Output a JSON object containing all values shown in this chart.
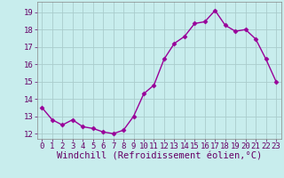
{
  "x": [
    0,
    1,
    2,
    3,
    4,
    5,
    6,
    7,
    8,
    9,
    10,
    11,
    12,
    13,
    14,
    15,
    16,
    17,
    18,
    19,
    20,
    21,
    22,
    23
  ],
  "y": [
    13.5,
    12.8,
    12.5,
    12.8,
    12.4,
    12.3,
    12.1,
    12.0,
    12.2,
    13.0,
    14.3,
    14.8,
    16.3,
    17.2,
    17.6,
    18.35,
    18.45,
    19.1,
    18.25,
    17.9,
    18.0,
    17.45,
    16.3,
    15.0
  ],
  "line_color": "#990099",
  "marker": "D",
  "markersize": 2.5,
  "linewidth": 1.0,
  "bg_color": "#c8eded",
  "grid_color": "#aacccc",
  "xlabel": "Windchill (Refroidissement éolien,°C)",
  "xlabel_color": "#660066",
  "xlabel_fontsize": 7.5,
  "ylabel_ticks": [
    12,
    13,
    14,
    15,
    16,
    17,
    18,
    19
  ],
  "xtick_labels": [
    "0",
    "1",
    "2",
    "3",
    "4",
    "5",
    "6",
    "7",
    "8",
    "9",
    "10",
    "11",
    "12",
    "13",
    "14",
    "15",
    "16",
    "17",
    "18",
    "19",
    "20",
    "21",
    "22",
    "23"
  ],
  "ylim": [
    11.7,
    19.6
  ],
  "xlim": [
    -0.5,
    23.5
  ],
  "tick_color": "#660066",
  "tick_fontsize": 6.5,
  "spine_color": "#888888"
}
